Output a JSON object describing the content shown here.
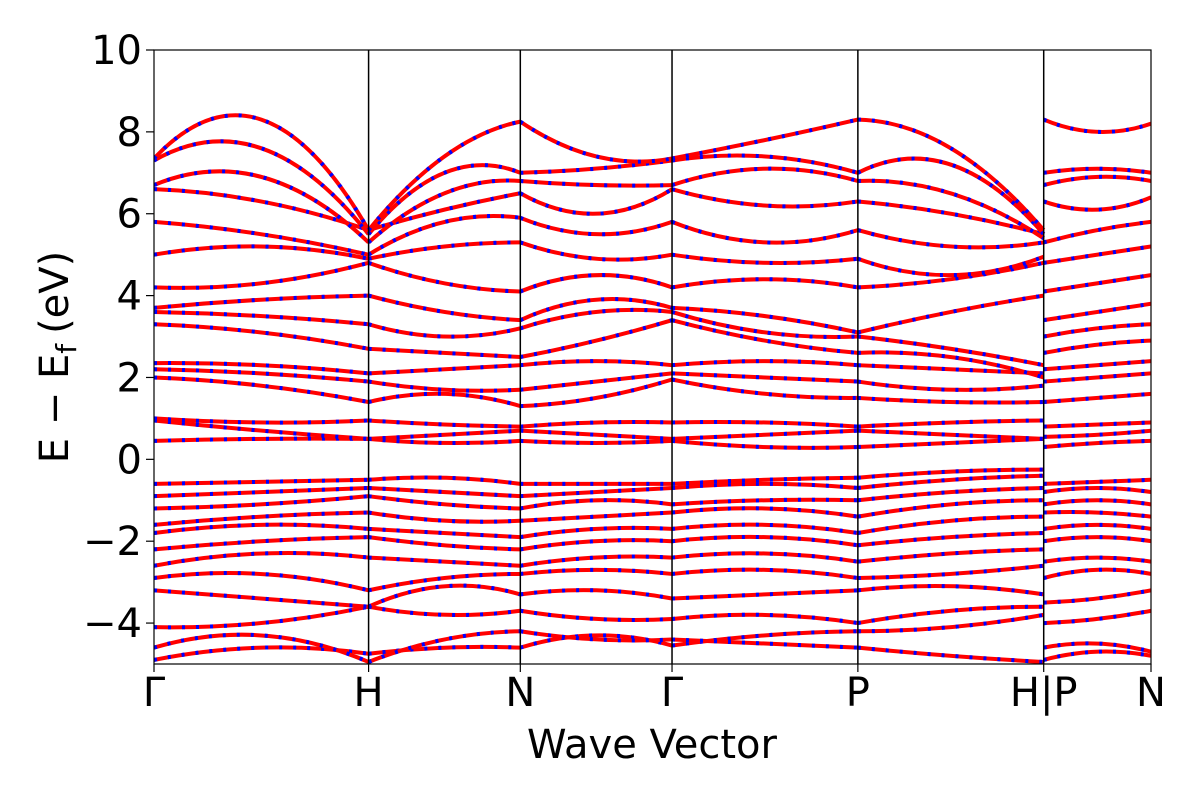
{
  "chart_data": {
    "type": "line",
    "title": "",
    "xlabel": "Wave Vector",
    "ylabel": {
      "base": "E − E",
      "sub": "f",
      "unit": "(eV)"
    },
    "ylim": [
      -5,
      10
    ],
    "yticks": [
      {
        "value": 10,
        "label": "10"
      },
      {
        "value": 8,
        "label": "8"
      },
      {
        "value": 6,
        "label": "6"
      },
      {
        "value": 4,
        "label": "4"
      },
      {
        "value": 2,
        "label": "2"
      },
      {
        "value": 0,
        "label": "0"
      },
      {
        "value": -2,
        "label": "−2"
      },
      {
        "value": -4,
        "label": "−4"
      }
    ],
    "kpoints": [
      {
        "label": "Γ",
        "pos": 0.0
      },
      {
        "label": "H",
        "pos": 1.0
      },
      {
        "label": "N",
        "pos": 1.707
      },
      {
        "label": "Γ",
        "pos": 2.414
      },
      {
        "label": "P",
        "pos": 3.28
      },
      {
        "label": "H|P",
        "pos": 4.146
      },
      {
        "label": "N",
        "pos": 4.646
      }
    ],
    "grid": false,
    "legend": "none",
    "series_colors": {
      "spin_up": "#0000ff",
      "spin_down": "#ff0000"
    },
    "dash_style": "blue dashes overlaid on red bands",
    "segments": [
      {
        "from": "Γ",
        "to": "H",
        "bands": [
          [
            -4.9,
            -4.6,
            -4.75
          ],
          [
            -4.6,
            -4.3,
            -4.95
          ],
          [
            -4.1,
            -4.0,
            -3.6
          ],
          [
            -3.2,
            -3.4,
            -3.6
          ],
          [
            -2.9,
            -2.8,
            -3.2
          ],
          [
            -2.6,
            -2.3,
            -2.4
          ],
          [
            -2.2,
            -2.0,
            -1.9
          ],
          [
            -1.8,
            -1.6,
            -1.7
          ],
          [
            -1.6,
            -1.4,
            -1.3
          ],
          [
            -1.2,
            -1.1,
            -0.9
          ],
          [
            -0.9,
            -0.8,
            -0.7
          ],
          [
            -0.6,
            -0.55,
            -0.5
          ],
          [
            0.45,
            0.5,
            0.5
          ],
          [
            0.95,
            0.7,
            0.5
          ],
          [
            1.0,
            0.9,
            0.95
          ],
          [
            2.0,
            1.8,
            1.4
          ],
          [
            2.2,
            2.1,
            1.9
          ],
          [
            2.35,
            2.3,
            2.1
          ],
          [
            3.3,
            3.1,
            2.7
          ],
          [
            3.6,
            3.5,
            3.3
          ],
          [
            3.7,
            3.9,
            4.0
          ],
          [
            4.2,
            4.3,
            4.8
          ],
          [
            5.0,
            5.2,
            4.9
          ],
          [
            5.8,
            5.5,
            5.0
          ],
          [
            6.6,
            6.3,
            5.6
          ],
          [
            6.7,
            6.9,
            5.3
          ],
          [
            7.3,
            7.6,
            5.5
          ],
          [
            7.35,
            8.3,
            5.6
          ]
        ]
      },
      {
        "from": "H",
        "to": "N",
        "bands": [
          [
            -4.75,
            -4.6,
            -4.6
          ],
          [
            -4.95,
            -4.4,
            -4.2
          ],
          [
            -3.6,
            -3.8,
            -3.7
          ],
          [
            -3.6,
            -3.1,
            -3.3
          ],
          [
            -3.2,
            -2.9,
            -2.8
          ],
          [
            -2.4,
            -2.5,
            -2.6
          ],
          [
            -1.9,
            -2.1,
            -2.2
          ],
          [
            -1.7,
            -1.8,
            -1.9
          ],
          [
            -1.3,
            -1.5,
            -1.5
          ],
          [
            -0.9,
            -1.1,
            -1.2
          ],
          [
            -0.7,
            -0.8,
            -0.9
          ],
          [
            -0.5,
            -0.45,
            -0.6
          ],
          [
            0.5,
            0.4,
            0.45
          ],
          [
            0.5,
            0.6,
            0.7
          ],
          [
            0.95,
            0.85,
            0.8
          ],
          [
            1.4,
            1.6,
            1.3
          ],
          [
            1.9,
            1.7,
            1.7
          ],
          [
            2.1,
            2.2,
            2.3
          ],
          [
            2.7,
            2.6,
            2.5
          ],
          [
            3.3,
            3.0,
            3.2
          ],
          [
            4.0,
            3.6,
            3.4
          ],
          [
            4.8,
            4.3,
            4.1
          ],
          [
            4.9,
            5.2,
            5.3
          ],
          [
            5.0,
            5.8,
            5.9
          ],
          [
            5.6,
            6.1,
            6.5
          ],
          [
            5.3,
            6.5,
            6.8
          ],
          [
            5.5,
            7.0,
            7.0
          ],
          [
            5.6,
            7.4,
            8.25
          ]
        ]
      },
      {
        "from": "N",
        "to": "Γ",
        "bands": [
          [
            -4.6,
            -4.3,
            -4.55
          ],
          [
            -4.2,
            -4.4,
            -4.4
          ],
          [
            -3.7,
            -3.9,
            -3.9
          ],
          [
            -3.3,
            -3.2,
            -3.4
          ],
          [
            -2.8,
            -2.7,
            -2.8
          ],
          [
            -2.6,
            -2.4,
            -2.4
          ],
          [
            -2.2,
            -2.0,
            -2.0
          ],
          [
            -1.9,
            -1.7,
            -1.7
          ],
          [
            -1.5,
            -1.4,
            -1.3
          ],
          [
            -1.2,
            -1.0,
            -1.1
          ],
          [
            -0.9,
            -0.8,
            -0.7
          ],
          [
            -0.6,
            -0.6,
            -0.6
          ],
          [
            0.45,
            0.4,
            0.45
          ],
          [
            0.7,
            0.6,
            0.5
          ],
          [
            0.8,
            0.9,
            0.9
          ],
          [
            1.3,
            1.5,
            1.95
          ],
          [
            1.7,
            1.9,
            2.1
          ],
          [
            2.3,
            2.4,
            2.3
          ],
          [
            2.5,
            2.9,
            3.4
          ],
          [
            3.2,
            3.6,
            3.6
          ],
          [
            3.4,
            3.9,
            3.7
          ],
          [
            4.1,
            4.5,
            4.2
          ],
          [
            5.3,
            4.9,
            5.0
          ],
          [
            5.9,
            5.5,
            5.8
          ],
          [
            6.5,
            6.0,
            6.6
          ],
          [
            6.8,
            6.7,
            6.7
          ],
          [
            7.0,
            7.1,
            7.3
          ],
          [
            8.25,
            7.4,
            7.35
          ]
        ]
      },
      {
        "from": "Γ",
        "to": "P",
        "bands": [
          [
            -4.55,
            -4.3,
            -4.2
          ],
          [
            -4.4,
            -4.5,
            -4.6
          ],
          [
            -3.9,
            -3.8,
            -4.0
          ],
          [
            -3.4,
            -3.3,
            -3.2
          ],
          [
            -2.8,
            -2.7,
            -2.9
          ],
          [
            -2.4,
            -2.3,
            -2.5
          ],
          [
            -2.0,
            -1.9,
            -2.1
          ],
          [
            -1.7,
            -1.6,
            -1.8
          ],
          [
            -1.3,
            -1.2,
            -1.4
          ],
          [
            -1.1,
            -1.0,
            -1.0
          ],
          [
            -0.7,
            -0.6,
            -0.7
          ],
          [
            -0.6,
            -0.5,
            -0.45
          ],
          [
            0.45,
            0.3,
            0.3
          ],
          [
            0.5,
            0.6,
            0.7
          ],
          [
            0.9,
            0.9,
            0.8
          ],
          [
            1.95,
            1.6,
            1.5
          ],
          [
            2.1,
            2.0,
            1.9
          ],
          [
            2.3,
            2.4,
            2.3
          ],
          [
            3.4,
            2.9,
            2.6
          ],
          [
            3.6,
            3.1,
            3.0
          ],
          [
            3.7,
            3.5,
            3.1
          ],
          [
            4.2,
            4.4,
            4.2
          ],
          [
            5.0,
            4.8,
            4.9
          ],
          [
            5.8,
            5.3,
            5.6
          ],
          [
            6.6,
            6.2,
            6.3
          ],
          [
            6.7,
            7.1,
            6.8
          ],
          [
            7.3,
            7.4,
            7.0
          ],
          [
            7.35,
            7.8,
            8.3
          ]
        ]
      },
      {
        "from": "P",
        "to": "H",
        "bands": [
          [
            -4.2,
            -4.1,
            -3.8
          ],
          [
            -4.6,
            -4.8,
            -4.95
          ],
          [
            -4.0,
            -3.7,
            -3.6
          ],
          [
            -3.2,
            -3.1,
            -3.3
          ],
          [
            -2.9,
            -2.8,
            -2.6
          ],
          [
            -2.5,
            -2.3,
            -2.2
          ],
          [
            -2.1,
            -1.9,
            -1.8
          ],
          [
            -1.8,
            -1.5,
            -1.4
          ],
          [
            -1.4,
            -1.1,
            -1.0
          ],
          [
            -1.0,
            -0.8,
            -0.7
          ],
          [
            -0.7,
            -0.5,
            -0.4
          ],
          [
            -0.45,
            -0.3,
            -0.25
          ],
          [
            0.3,
            0.4,
            0.5
          ],
          [
            0.7,
            0.6,
            0.5
          ],
          [
            0.8,
            0.9,
            0.95
          ],
          [
            1.5,
            1.4,
            1.4
          ],
          [
            1.9,
            1.7,
            1.8
          ],
          [
            2.3,
            2.2,
            2.1
          ],
          [
            2.6,
            2.5,
            2.0
          ],
          [
            3.0,
            2.7,
            2.3
          ],
          [
            3.1,
            3.6,
            4.0
          ],
          [
            4.2,
            4.4,
            4.8
          ],
          [
            4.9,
            4.5,
            4.95
          ],
          [
            5.6,
            5.2,
            5.3
          ],
          [
            6.3,
            6.0,
            5.5
          ],
          [
            6.8,
            6.5,
            5.4
          ],
          [
            7.0,
            7.2,
            5.5
          ],
          [
            8.3,
            7.6,
            5.6
          ]
        ]
      },
      {
        "from": "P",
        "to": "N",
        "bands": [
          [
            -4.9,
            -4.7,
            -4.8
          ],
          [
            -4.6,
            -4.5,
            -4.7
          ],
          [
            -4.0,
            -3.9,
            -3.7
          ],
          [
            -3.5,
            -3.4,
            -3.2
          ],
          [
            -2.9,
            -2.7,
            -2.8
          ],
          [
            -2.5,
            -2.4,
            -2.5
          ],
          [
            -2.0,
            -1.9,
            -2.0
          ],
          [
            -1.7,
            -1.6,
            -1.7
          ],
          [
            -1.3,
            -1.3,
            -1.4
          ],
          [
            -1.1,
            -1.0,
            -1.1
          ],
          [
            -0.8,
            -0.7,
            -0.8
          ],
          [
            -0.6,
            -0.55,
            -0.5
          ],
          [
            0.3,
            0.4,
            0.45
          ],
          [
            0.55,
            0.6,
            0.7
          ],
          [
            0.8,
            0.85,
            0.9
          ],
          [
            1.4,
            1.5,
            1.6
          ],
          [
            1.9,
            2.0,
            2.1
          ],
          [
            2.2,
            2.3,
            2.4
          ],
          [
            2.6,
            2.8,
            2.9
          ],
          [
            3.0,
            3.2,
            3.3
          ],
          [
            3.4,
            3.6,
            3.8
          ],
          [
            4.1,
            4.3,
            4.5
          ],
          [
            4.8,
            5.0,
            5.2
          ],
          [
            5.3,
            5.6,
            5.8
          ],
          [
            6.3,
            6.1,
            6.4
          ],
          [
            6.7,
            6.9,
            6.8
          ],
          [
            7.0,
            7.1,
            7.0
          ],
          [
            8.3,
            8.0,
            8.2
          ]
        ]
      }
    ]
  }
}
